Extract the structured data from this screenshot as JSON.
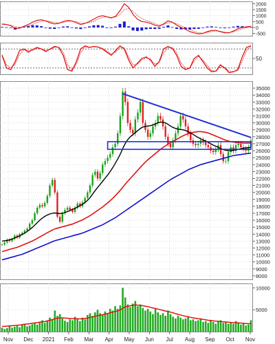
{
  "colors": {
    "price_up": "#19a319",
    "price_down": "#e02020",
    "ma_short": "#000000",
    "ma_mid": "#e01010",
    "ma_long": "#1010cc",
    "trendline": "#1f2fd6",
    "support_box": "#1f2fd6",
    "volume_bar": "#22aa22",
    "volume_ma": "#e01010",
    "macd_line": "#e01010",
    "macd_signal": "#cc4444",
    "macd_hist_up": "#1a1acc",
    "macd_hist_down": "#1a1acc",
    "stoch_line": "#e01010",
    "stoch_signal": "#cc2222",
    "grid": "#cfcfcf",
    "axis_text": "#222222"
  },
  "x_axis": {
    "labels": [
      "Nov",
      "Dec",
      "2021",
      "Feb",
      "Mar",
      "Apr",
      "May",
      "Jun",
      "Jul",
      "Aug",
      "Sep",
      "Oct",
      "Nov"
    ]
  },
  "chart_data": [
    {
      "type": "line",
      "panel": "macd",
      "y_ticks": [
        2000,
        1500,
        1000,
        500,
        0,
        -500
      ],
      "ylim": [
        -700,
        2200
      ],
      "series": [
        {
          "values": [
            300,
            250,
            150,
            -100,
            -50,
            100,
            250,
            450,
            600,
            650,
            550,
            400,
            300,
            350,
            500,
            600,
            550,
            400,
            250,
            350,
            500,
            700,
            900,
            1000,
            900,
            800,
            950,
            1400,
            2000,
            1700,
            1100,
            700,
            500,
            450,
            350,
            200,
            100,
            300,
            550,
            450,
            200,
            0,
            -150,
            -350,
            -450,
            -550,
            -500,
            -350,
            -250,
            -250,
            -350,
            -450,
            -450,
            -300,
            -100,
            0,
            50,
            100
          ]
        },
        {
          "values": [
            250,
            230,
            190,
            80,
            20,
            40,
            120,
            260,
            420,
            540,
            570,
            500,
            420,
            380,
            420,
            500,
            540,
            480,
            380,
            360,
            410,
            520,
            700,
            860,
            900,
            850,
            880,
            1100,
            1500,
            1600,
            1350,
            1000,
            760,
            600,
            470,
            330,
            210,
            240,
            380,
            420,
            320,
            160,
            0,
            -180,
            -320,
            -440,
            -480,
            -420,
            -340,
            -290,
            -320,
            -390,
            -430,
            -370,
            -230,
            -110,
            -20,
            50
          ]
        }
      ],
      "histogram": [
        50,
        20,
        -40,
        -180,
        -70,
        60,
        130,
        190,
        180,
        110,
        -20,
        -100,
        -120,
        -30,
        80,
        100,
        10,
        -80,
        -130,
        -10,
        90,
        180,
        200,
        140,
        0,
        -50,
        70,
        300,
        500,
        100,
        -250,
        -300,
        -260,
        -150,
        -120,
        -130,
        -110,
        60,
        170,
        30,
        -120,
        -160,
        -150,
        -170,
        -130,
        -110,
        -20,
        70,
        90,
        40,
        -30,
        -60,
        -20,
        70,
        130,
        110,
        70,
        50
      ]
    },
    {
      "type": "line",
      "panel": "stochastic",
      "y_ticks": [
        50
      ],
      "ylim": [
        0,
        100
      ],
      "series": [
        {
          "values": [
            60,
            20,
            15,
            40,
            75,
            80,
            70,
            78,
            85,
            80,
            72,
            80,
            88,
            85,
            60,
            15,
            10,
            40,
            80,
            90,
            85,
            88,
            86,
            80,
            70,
            60,
            75,
            90,
            80,
            45,
            20,
            35,
            50,
            55,
            45,
            25,
            40,
            80,
            88,
            82,
            60,
            25,
            15,
            20,
            50,
            60,
            40,
            20,
            8,
            10,
            30,
            20,
            5,
            8,
            15,
            55,
            85,
            90
          ]
        },
        {
          "values": [
            62,
            30,
            20,
            32,
            62,
            78,
            75,
            76,
            82,
            81,
            75,
            78,
            85,
            86,
            70,
            30,
            15,
            30,
            68,
            86,
            86,
            87,
            86,
            82,
            74,
            64,
            70,
            84,
            84,
            55,
            30,
            32,
            45,
            52,
            48,
            32,
            38,
            68,
            84,
            84,
            68,
            36,
            20,
            20,
            42,
            56,
            46,
            28,
            12,
            10,
            24,
            22,
            10,
            8,
            12,
            42,
            75,
            88
          ]
        }
      ],
      "ref_lines": [
        20,
        80
      ]
    },
    {
      "type": "candlestick",
      "panel": "price",
      "y_ticks": [
        35000,
        34000,
        33000,
        32000,
        31000,
        30000,
        29000,
        28000,
        27000,
        26000,
        25000,
        24000,
        23000,
        22000,
        21000,
        20000,
        19000,
        18000,
        17000,
        16000,
        15000,
        14000,
        13000,
        12000,
        11000,
        10000,
        9000,
        8000
      ],
      "ylim": [
        7500,
        36000
      ],
      "close": [
        12500,
        12800,
        13200,
        13000,
        13300,
        13800,
        13500,
        14000,
        14200,
        14500,
        14800,
        15500,
        16000,
        17000,
        17800,
        18200,
        18000,
        18500,
        19500,
        21000,
        21800,
        20000,
        16500,
        15800,
        17000,
        17500,
        17800,
        17500,
        17200,
        17800,
        18400,
        18000,
        18600,
        19200,
        20000,
        21000,
        22500,
        23000,
        22000,
        22800,
        24000,
        24500,
        25000,
        25500,
        26500,
        27000,
        28500,
        31000,
        34500,
        33000,
        30000,
        29000,
        28500,
        30500,
        31500,
        33000,
        30000,
        29000,
        28000,
        28500,
        29500,
        30000,
        31000,
        30500,
        29500,
        28000,
        27000,
        26500,
        27500,
        28500,
        29500,
        31000,
        30500,
        29500,
        28500,
        27500,
        27000,
        26800,
        27000,
        27500,
        27200,
        26800,
        26500,
        26000,
        25800,
        26200,
        26800,
        25500,
        24500,
        24500,
        25800,
        26500,
        26000,
        26800,
        27000,
        26500,
        26300,
        26000,
        26500,
        27500
      ],
      "ma_short": [
        13000,
        13050,
        13100,
        13200,
        13300,
        13450,
        13600,
        13750,
        13950,
        14150,
        14400,
        14650,
        14950,
        15300,
        15650,
        16000,
        16300,
        16550,
        16750,
        16900,
        17000,
        17050,
        17000,
        16950,
        17000,
        17100,
        17250,
        17400,
        17550,
        17700,
        17900,
        18100,
        18300,
        18550,
        18850,
        19250,
        19750,
        20250,
        20700,
        21150,
        21600,
        22050,
        22500,
        23000,
        23550,
        24150,
        24800,
        25500,
        26300,
        27050,
        27600,
        28000,
        28300,
        28600,
        28900,
        29200,
        29400,
        29500,
        29550,
        29600,
        29700,
        29850,
        30000,
        30100,
        30100,
        30000,
        29800,
        29550,
        29350,
        29200,
        29100,
        29050,
        29000,
        28900,
        28750,
        28550,
        28350,
        28100,
        27900,
        27700,
        27550,
        27400,
        27200,
        27000,
        26800,
        26650,
        26500,
        26300,
        26150,
        26050,
        26000,
        26000,
        26050,
        26100,
        26200,
        26300,
        26350,
        26400,
        26450,
        26500
      ]
    },
    {
      "type": "bar",
      "panel": "volume",
      "y_ticks": [
        10000,
        5000
      ],
      "ylim": [
        0,
        11000
      ],
      "values": [
        900,
        600,
        800,
        1200,
        900,
        1100,
        1300,
        1000,
        1500,
        1800,
        1200,
        1400,
        1700,
        2000,
        1600,
        2200,
        2600,
        2000,
        2400,
        3200,
        2800,
        4800,
        3600,
        4000,
        3000,
        2500,
        2200,
        2800,
        2600,
        3400,
        3000,
        2400,
        3200,
        2800,
        3800,
        4200,
        3600,
        4400,
        5000,
        4200,
        3800,
        4600,
        4200,
        5200,
        4800,
        5800,
        5200,
        6000,
        10000,
        7800,
        6200,
        5600,
        6400,
        7000,
        5800,
        6200,
        5400,
        4800,
        5200,
        4600,
        4000,
        5200,
        4400,
        3800,
        4200,
        3600,
        4800,
        4000,
        3400,
        3000,
        3600,
        3200,
        2800,
        3000,
        3400,
        2600,
        2800,
        2400,
        2600,
        3000,
        2200,
        2400,
        2000,
        2600,
        2200,
        1800,
        2400,
        2600,
        2000,
        2200,
        1800,
        2000,
        1800,
        2400,
        2000,
        1600,
        1800,
        1400,
        1600,
        2600
      ],
      "ma": [
        1200,
        1200,
        1250,
        1300,
        1350,
        1400,
        1450,
        1500,
        1600,
        1700,
        1750,
        1800,
        1900,
        2000,
        2050,
        2150,
        2250,
        2300,
        2450,
        2600,
        2750,
        2950,
        3050,
        3150,
        3150,
        3100,
        3050,
        3000,
        2950,
        2950,
        2950,
        2900,
        2950,
        3000,
        3100,
        3250,
        3350,
        3500,
        3650,
        3750,
        3850,
        4000,
        4150,
        4300,
        4450,
        4600,
        4750,
        4950,
        5350,
        5650,
        5800,
        5900,
        6000,
        6100,
        6050,
        6000,
        5900,
        5800,
        5700,
        5550,
        5400,
        5300,
        5150,
        5000,
        4850,
        4700,
        4600,
        4450,
        4300,
        4100,
        3950,
        3800,
        3650,
        3500,
        3400,
        3250,
        3150,
        3050,
        2950,
        2900,
        2800,
        2700,
        2600,
        2550,
        2450,
        2400,
        2350,
        2300,
        2250,
        2200,
        2150,
        2100,
        2050,
        2050,
        2000,
        1950,
        1900,
        1850,
        1800,
        1850
      ]
    }
  ],
  "overlays": {
    "ma_mid": [
      11500,
      11600,
      11700,
      11800,
      11900,
      12000,
      12100,
      12250,
      12400,
      12550,
      12700,
      12850,
      13000,
      13200,
      13400,
      13600,
      13800,
      14000,
      14200,
      14400,
      14600,
      14750,
      14850,
      14950,
      15050,
      15150,
      15250,
      15350,
      15450,
      15600,
      15750,
      15900,
      16050,
      16250,
      16450,
      16650,
      16900,
      17150,
      17400,
      17650,
      17900,
      18200,
      18500,
      18800,
      19150,
      19500,
      19900,
      20300,
      20750,
      21200,
      21600,
      22000,
      22400,
      22800,
      23200,
      23600,
      24000,
      24350,
      24700,
      25000,
      25300,
      25600,
      25900,
      26200,
      26450,
      26700,
      26950,
      27150,
      27350,
      27550,
      27750,
      27950,
      28150,
      28300,
      28450,
      28550,
      28650,
      28700,
      28750,
      28750,
      28700,
      28650,
      28550,
      28400,
      28250,
      28100,
      27950,
      27800,
      27650,
      27500,
      27400,
      27300,
      27250,
      27200,
      27150,
      27150,
      27100,
      27100,
      27100,
      27100
    ],
    "ma_long": [
      10300,
      10400,
      10500,
      10600,
      10700,
      10800,
      10900,
      11000,
      11100,
      11250,
      11400,
      11550,
      11700,
      11850,
      12000,
      12150,
      12300,
      12450,
      12600,
      12750,
      12900,
      13050,
      13150,
      13250,
      13350,
      13450,
      13550,
      13650,
      13750,
      13850,
      13950,
      14050,
      14150,
      14300,
      14450,
      14600,
      14750,
      14900,
      15050,
      15200,
      15350,
      15550,
      15750,
      15950,
      16150,
      16350,
      16600,
      16850,
      17100,
      17350,
      17600,
      17850,
      18100,
      18350,
      18600,
      18850,
      19100,
      19350,
      19600,
      19850,
      20100,
      20350,
      20600,
      20850,
      21100,
      21350,
      21600,
      21850,
      22050,
      22250,
      22450,
      22650,
      22850,
      23050,
      23250,
      23400,
      23550,
      23700,
      23850,
      24000,
      24100,
      24200,
      24300,
      24400,
      24500,
      24600,
      24700,
      24800,
      24900,
      25000,
      25100,
      25200,
      25300,
      25350,
      25400,
      25450,
      25500,
      25550,
      25600,
      25650
    ],
    "trendline": {
      "x0": 48,
      "y0": 34200,
      "x1": 99,
      "y1": 27900
    },
    "support_zone": {
      "x0": 42,
      "x1": 99,
      "y_low": 26200,
      "y_high": 27300
    }
  }
}
